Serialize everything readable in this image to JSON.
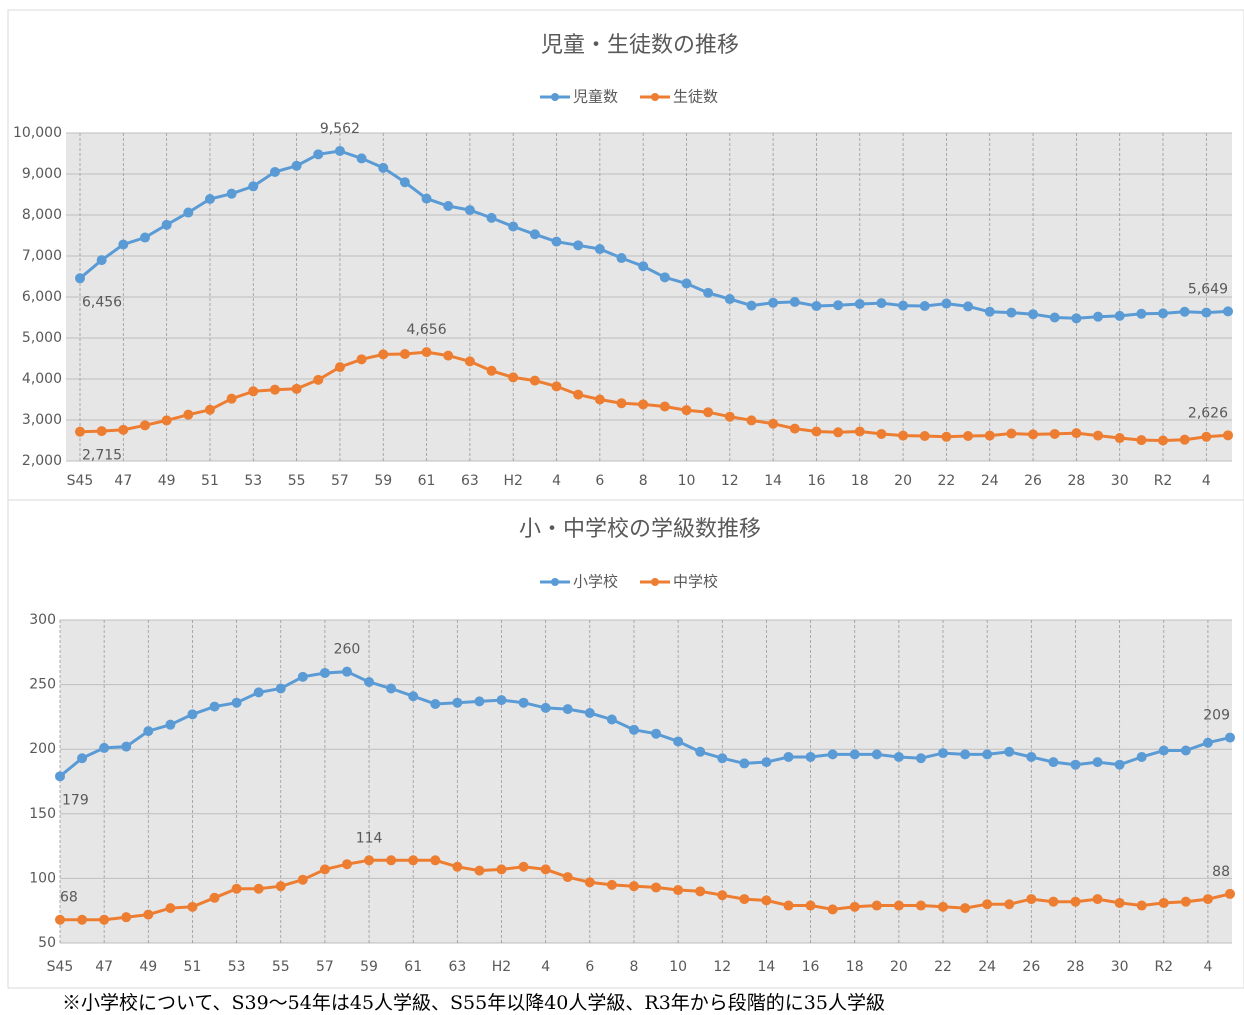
{
  "chart_data": [
    {
      "type": "line",
      "title": "児童・生徒数の推移",
      "categories": [
        "S45",
        null,
        "47",
        null,
        "49",
        null,
        "51",
        null,
        "53",
        null,
        "55",
        null,
        "57",
        null,
        "59",
        null,
        "61",
        null,
        "63",
        null,
        "H2",
        null,
        "4",
        null,
        "6",
        null,
        "8",
        null,
        "10",
        null,
        "12",
        null,
        "14",
        null,
        "16",
        null,
        "18",
        null,
        "20",
        null,
        "22",
        null,
        "24",
        null,
        "26",
        null,
        "28",
        null,
        "30",
        null,
        "R2",
        null,
        "4",
        null
      ],
      "series": [
        {
          "name": "児童数",
          "color": "#5b9bd5",
          "values": [
            6456,
            6900,
            7280,
            7450,
            7760,
            8060,
            8390,
            8520,
            8700,
            9050,
            9200,
            9480,
            9562,
            9380,
            9150,
            8800,
            8400,
            8220,
            8120,
            7930,
            7720,
            7530,
            7350,
            7260,
            7170,
            6950,
            6750,
            6480,
            6330,
            6100,
            5950,
            5790,
            5860,
            5880,
            5780,
            5800,
            5830,
            5850,
            5790,
            5780,
            5840,
            5770,
            5640,
            5620,
            5580,
            5500,
            5480,
            5520,
            5540,
            5590,
            5600,
            5640,
            5620,
            5649
          ],
          "value_labels": [
            "6,456",
            null,
            null,
            null,
            null,
            null,
            null,
            null,
            null,
            null,
            null,
            null,
            "9,562",
            null,
            null,
            null,
            null,
            null,
            null,
            null,
            null,
            null,
            null,
            null,
            null,
            null,
            null,
            null,
            null,
            null,
            null,
            null,
            null,
            null,
            null,
            null,
            null,
            null,
            null,
            null,
            null,
            null,
            null,
            null,
            null,
            null,
            null,
            null,
            null,
            null,
            null,
            null,
            null,
            "5,649"
          ]
        },
        {
          "name": "生徒数",
          "color": "#ed7d31",
          "values": [
            2715,
            2730,
            2760,
            2870,
            2990,
            3130,
            3250,
            3520,
            3700,
            3740,
            3760,
            3980,
            4290,
            4480,
            4600,
            4610,
            4656,
            4570,
            4430,
            4200,
            4040,
            3960,
            3820,
            3620,
            3500,
            3410,
            3380,
            3330,
            3240,
            3190,
            3080,
            2990,
            2910,
            2790,
            2720,
            2700,
            2720,
            2660,
            2620,
            2610,
            2590,
            2610,
            2620,
            2670,
            2650,
            2660,
            2680,
            2620,
            2560,
            2510,
            2500,
            2520,
            2590,
            2626
          ],
          "value_labels": [
            "2,715",
            null,
            null,
            null,
            null,
            null,
            null,
            null,
            null,
            null,
            null,
            null,
            null,
            null,
            null,
            null,
            "4,656",
            null,
            null,
            null,
            null,
            null,
            null,
            null,
            null,
            null,
            null,
            null,
            null,
            null,
            null,
            null,
            null,
            null,
            null,
            null,
            null,
            null,
            null,
            null,
            null,
            null,
            null,
            null,
            null,
            null,
            null,
            null,
            null,
            null,
            null,
            null,
            null,
            "2,626"
          ]
        }
      ],
      "ylim": [
        2000,
        10000
      ],
      "yticks": [
        {
          "value": 2000,
          "label": "2,000"
        },
        {
          "value": 3000,
          "label": "3,000"
        },
        {
          "value": 4000,
          "label": "4,000"
        },
        {
          "value": 5000,
          "label": "5,000"
        },
        {
          "value": 6000,
          "label": "6,000"
        },
        {
          "value": 7000,
          "label": "7,000"
        },
        {
          "value": 8000,
          "label": "8,000"
        },
        {
          "value": 9000,
          "label": "9,000"
        },
        {
          "value": 10000,
          "label": "10,000"
        }
      ],
      "grid": true,
      "legend": "top"
    },
    {
      "type": "line",
      "title": "小・中学校の学級数推移",
      "categories": [
        "S45",
        null,
        "47",
        null,
        "49",
        null,
        "51",
        null,
        "53",
        null,
        "55",
        null,
        "57",
        null,
        "59",
        null,
        "61",
        null,
        "63",
        null,
        "H2",
        null,
        "4",
        null,
        "6",
        null,
        "8",
        null,
        "10",
        null,
        "12",
        null,
        "14",
        null,
        "16",
        null,
        "18",
        null,
        "20",
        null,
        "22",
        null,
        "24",
        null,
        "26",
        null,
        "28",
        null,
        "30",
        null,
        "R2",
        null,
        "4",
        null
      ],
      "series": [
        {
          "name": "小学校",
          "color": "#5b9bd5",
          "values": [
            179,
            193,
            201,
            202,
            214,
            219,
            227,
            233,
            236,
            244,
            247,
            256,
            259,
            260,
            252,
            247,
            241,
            235,
            236,
            237,
            238,
            236,
            232,
            231,
            228,
            223,
            215,
            212,
            206,
            198,
            193,
            189,
            190,
            194,
            194,
            196,
            196,
            196,
            194,
            193,
            197,
            196,
            196,
            198,
            194,
            190,
            188,
            190,
            188,
            194,
            199,
            199,
            205,
            209
          ],
          "value_labels": [
            "179",
            null,
            null,
            null,
            null,
            null,
            null,
            null,
            null,
            null,
            null,
            null,
            null,
            "260",
            null,
            null,
            null,
            null,
            null,
            null,
            null,
            null,
            null,
            null,
            null,
            null,
            null,
            null,
            null,
            null,
            null,
            null,
            null,
            null,
            null,
            null,
            null,
            null,
            null,
            null,
            null,
            null,
            null,
            null,
            null,
            null,
            null,
            null,
            null,
            null,
            null,
            null,
            null,
            "209"
          ]
        },
        {
          "name": "中学校",
          "color": "#ed7d31",
          "values": [
            68,
            68,
            68,
            70,
            72,
            77,
            78,
            85,
            92,
            92,
            94,
            99,
            107,
            111,
            114,
            114,
            114,
            114,
            109,
            106,
            107,
            109,
            107,
            101,
            97,
            95,
            94,
            93,
            91,
            90,
            87,
            84,
            83,
            79,
            79,
            76,
            78,
            79,
            79,
            79,
            78,
            77,
            80,
            80,
            84,
            82,
            82,
            84,
            81,
            79,
            81,
            82,
            84,
            88
          ],
          "value_labels": [
            "68",
            null,
            null,
            null,
            null,
            null,
            null,
            null,
            null,
            null,
            null,
            null,
            null,
            null,
            "114",
            null,
            null,
            null,
            null,
            null,
            null,
            null,
            null,
            null,
            null,
            null,
            null,
            null,
            null,
            null,
            null,
            null,
            null,
            null,
            null,
            null,
            null,
            null,
            null,
            null,
            null,
            null,
            null,
            null,
            null,
            null,
            null,
            null,
            null,
            null,
            null,
            null,
            null,
            "88"
          ]
        }
      ],
      "ylim": [
        50,
        300
      ],
      "yticks": [
        50,
        100,
        150,
        200,
        250,
        300
      ],
      "grid": true,
      "legend": "top"
    }
  ],
  "footnote": "※小学校について、S39～54年は45人学級、S55年以降40人学級、R3年から段階的に35人学級"
}
